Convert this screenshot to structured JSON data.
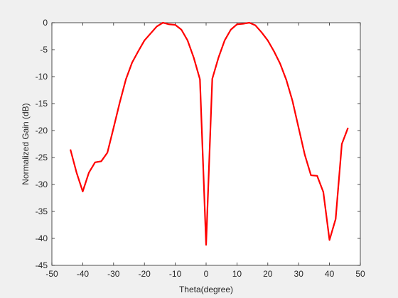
{
  "chart_data": {
    "type": "line",
    "xlabel": "Theta(degree)",
    "ylabel": "Normalized Gain (dB)",
    "x": [
      -44,
      -42,
      -40,
      -38,
      -36,
      -34,
      -32,
      -30,
      -28,
      -26,
      -24,
      -22,
      -20,
      -18,
      -16,
      -14,
      -12,
      -10,
      -8,
      -6,
      -4,
      -2,
      0,
      2,
      4,
      6,
      8,
      10,
      12,
      14,
      16,
      18,
      20,
      22,
      24,
      26,
      28,
      30,
      32,
      34,
      36,
      38,
      40,
      42,
      44,
      46
    ],
    "values": [
      -23.5,
      -27.8,
      -31.3,
      -27.8,
      -25.9,
      -25.7,
      -24.1,
      -19.5,
      -14.8,
      -10.5,
      -7.4,
      -5.3,
      -3.3,
      -2.0,
      -0.7,
      0,
      -0.3,
      -0.4,
      -1.3,
      -3.3,
      -6.5,
      -10.5,
      -41.2,
      -10.4,
      -6.5,
      -3.3,
      -1.3,
      -0.3,
      -0.2,
      0,
      -0.5,
      -1.8,
      -3.3,
      -5.3,
      -7.6,
      -10.6,
      -14.5,
      -19.5,
      -24.5,
      -28.3,
      -28.4,
      -31.4,
      -40.3,
      -36.4,
      -22.5,
      -19.5
    ],
    "color": "#ff0000",
    "xlim": [
      -50,
      50
    ],
    "xticks": [
      -50,
      -40,
      -30,
      -20,
      -10,
      0,
      10,
      20,
      30,
      40,
      50
    ],
    "ylim": [
      -45,
      0
    ],
    "yticks": [
      -45,
      -40,
      -35,
      -30,
      -25,
      -20,
      -15,
      -10,
      -5,
      0
    ],
    "grid": false
  }
}
